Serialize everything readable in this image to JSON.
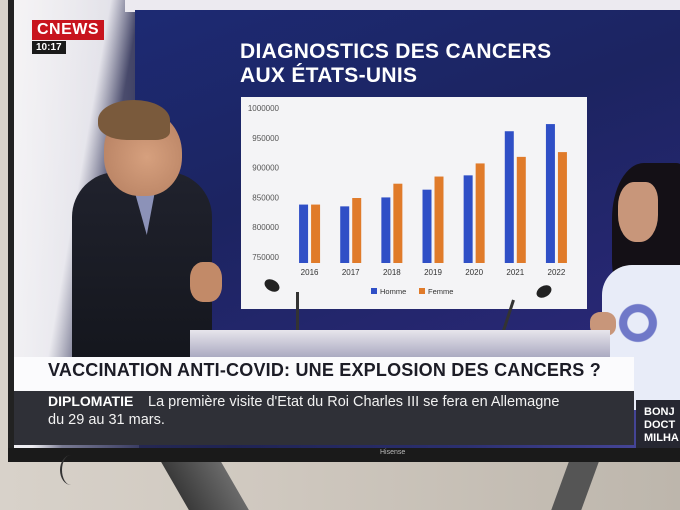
{
  "channel": {
    "logo": "CNEWS",
    "time": "10:17"
  },
  "chart_data": {
    "type": "bar",
    "title_lines": [
      "DIAGNOSTICS DES CANCERS",
      "AUX ÉTATS-UNIS"
    ],
    "categories": [
      "2016",
      "2017",
      "2018",
      "2019",
      "2020",
      "2021",
      "2022"
    ],
    "series": [
      {
        "name": "Homme",
        "color": "#2f4fc6",
        "values": [
          838000,
          835000,
          850000,
          863000,
          887000,
          961000,
          973000
        ]
      },
      {
        "name": "Femme",
        "color": "#e07b2a",
        "values": [
          838000,
          849000,
          873000,
          885000,
          907000,
          918000,
          926000
        ]
      }
    ],
    "yticks": [
      750000,
      800000,
      850000,
      900000,
      950000,
      1000000
    ],
    "ylim": [
      740000,
      1005000
    ],
    "grid": false,
    "legend_position": "bottom"
  },
  "headline": "VACCINATION ANTI-COVID: UNE EXPLOSION DES CANCERS ?",
  "ticker": {
    "tag": "DIPLOMATIE",
    "text_line1": "La première visite d'Etat du Roi Charles III se fera en Allemagne",
    "text_line2": "du 29 au 31 mars."
  },
  "side_promo": [
    "BONJ",
    "DOCT",
    "MILHA"
  ],
  "tv_brand": "Hisense"
}
